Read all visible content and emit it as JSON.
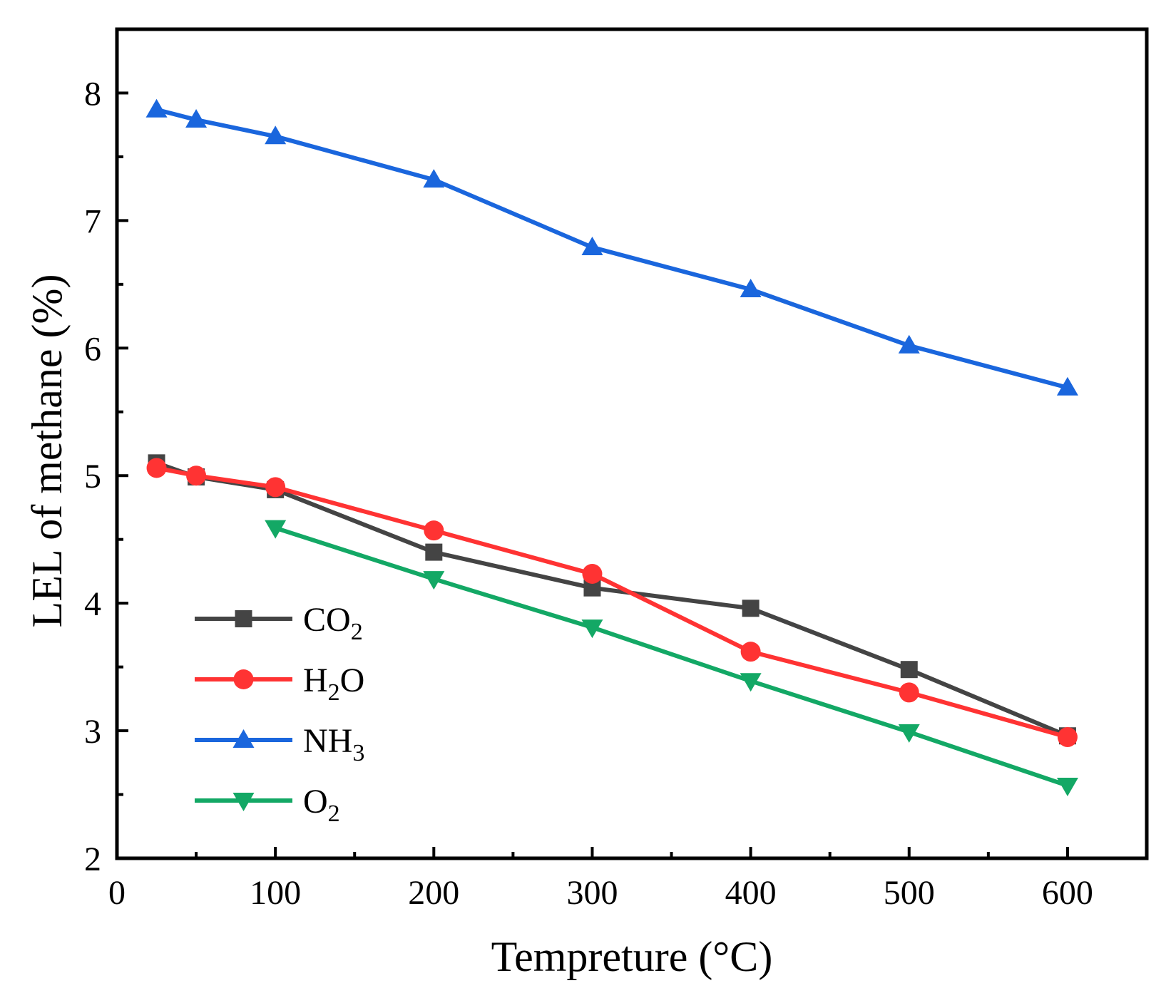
{
  "chart_data": {
    "type": "line",
    "xlabel": "Tempreture (°C)",
    "ylabel": "LEL of methane (%)",
    "xlim": [
      0,
      650
    ],
    "ylim": [
      2,
      8.5
    ],
    "xticks": [
      0,
      100,
      200,
      300,
      400,
      500,
      600
    ],
    "xtick_labels": [
      "0",
      "100",
      "200",
      "300",
      "400",
      "500",
      "600"
    ],
    "yticks": [
      2,
      3,
      4,
      5,
      6,
      7,
      8
    ],
    "ytick_labels": [
      "2",
      "3",
      "4",
      "5",
      "6",
      "7",
      "8"
    ],
    "legend_position": "bottom-left",
    "series": [
      {
        "name": "CO2",
        "label_main": "CO",
        "label_sub": "2",
        "label_tail": "",
        "color": "#444444",
        "marker": "square",
        "x": [
          25,
          50,
          100,
          200,
          300,
          400,
          500,
          600
        ],
        "y": [
          5.1,
          4.99,
          4.89,
          4.4,
          4.12,
          3.96,
          3.48,
          2.96
        ]
      },
      {
        "name": "H2O",
        "label_main": "H",
        "label_sub": "2",
        "label_tail": "O",
        "color": "#ff3333",
        "marker": "circle",
        "x": [
          25,
          50,
          100,
          200,
          300,
          400,
          500,
          600
        ],
        "y": [
          5.06,
          5.0,
          4.91,
          4.57,
          4.23,
          3.62,
          3.3,
          2.95
        ]
      },
      {
        "name": "NH3",
        "label_main": "NH",
        "label_sub": "3",
        "label_tail": "",
        "color": "#1a66dd",
        "marker": "triangle-up",
        "x": [
          25,
          50,
          100,
          200,
          300,
          400,
          500,
          600
        ],
        "y": [
          7.87,
          7.79,
          7.66,
          7.32,
          6.79,
          6.46,
          6.02,
          5.69
        ]
      },
      {
        "name": "O2",
        "label_main": "O",
        "label_sub": "2",
        "label_tail": "",
        "color": "#13a865",
        "marker": "triangle-down",
        "x": [
          100,
          200,
          300,
          400,
          500,
          600
        ],
        "y": [
          4.59,
          4.19,
          3.81,
          3.39,
          2.99,
          2.57
        ]
      }
    ]
  }
}
